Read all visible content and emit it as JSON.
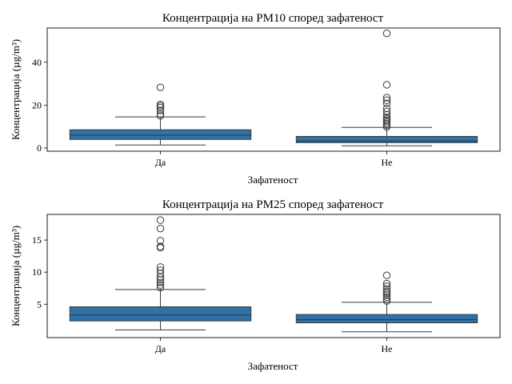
{
  "chart_data": [
    {
      "type": "box",
      "title": "Концентрација на PM10 според зафатеност",
      "xlabel": "Зафатеност",
      "ylabel": "Концентрација (µg/m³)",
      "categories": [
        "Да",
        "Не"
      ],
      "ylim": [
        -1.5,
        56
      ],
      "yticks": [
        0,
        20,
        40
      ],
      "boxes": [
        {
          "category": "Да",
          "whisker_low": 1.4,
          "q1": 4.0,
          "median": 6.0,
          "q3": 8.5,
          "whisker_high": 14.5,
          "fliers": [
            15.0,
            15.8,
            17.5,
            18.8,
            19.6,
            20.3,
            28.3
          ]
        },
        {
          "category": "Не",
          "whisker_low": 1.0,
          "q1": 2.5,
          "median": 3.2,
          "q3": 5.4,
          "whisker_high": 9.6,
          "fliers": [
            9.8,
            10.5,
            11.3,
            12.0,
            12.8,
            13.5,
            14.3,
            15.5,
            17.0,
            18.5,
            20.8,
            22.3,
            23.5,
            29.5,
            53.5
          ]
        }
      ]
    },
    {
      "type": "box",
      "title": "Концентрација на PM25 според зафатеност",
      "xlabel": "Зафатеност",
      "ylabel": "Концентрација (µg/m³)",
      "categories": [
        "Да",
        "Не"
      ],
      "ylim": [
        -0.2,
        19.0
      ],
      "yticks": [
        5,
        10,
        15
      ],
      "boxes": [
        {
          "category": "Да",
          "whisker_low": 1.0,
          "q1": 2.4,
          "median": 3.3,
          "q3": 4.6,
          "whisker_high": 7.3,
          "fliers": [
            7.6,
            8.0,
            8.4,
            8.8,
            9.2,
            9.8,
            10.3,
            10.8,
            13.8,
            14.0,
            14.9,
            16.8,
            18.1
          ]
        },
        {
          "category": "Не",
          "whisker_low": 0.7,
          "q1": 2.1,
          "median": 2.6,
          "q3": 3.4,
          "whisker_high": 5.3,
          "fliers": [
            5.5,
            5.8,
            6.1,
            6.4,
            6.7,
            7.0,
            7.4,
            7.8,
            8.2,
            9.5
          ]
        }
      ]
    }
  ]
}
